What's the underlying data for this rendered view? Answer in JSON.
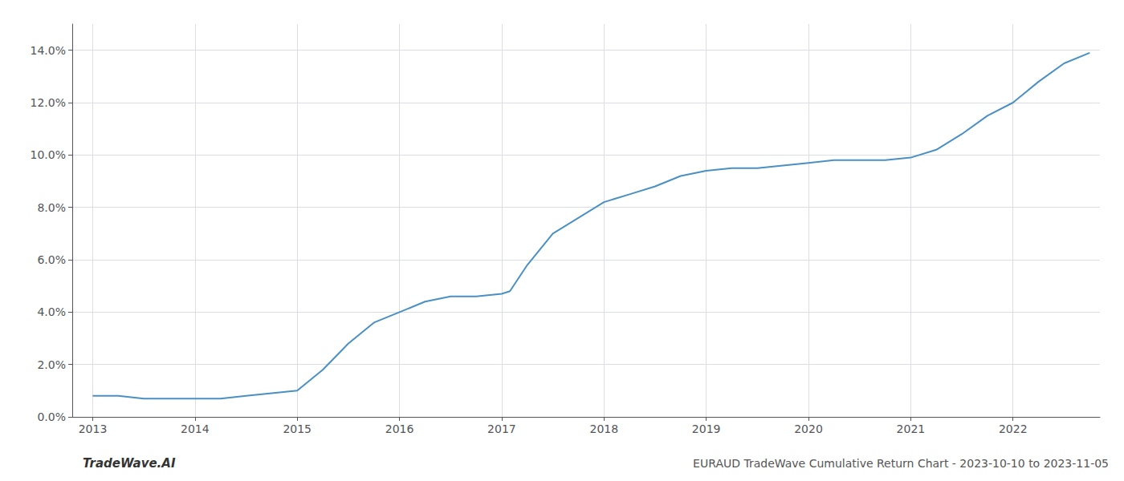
{
  "chart_data": {
    "type": "line",
    "title": "EURAUD TradeWave Cumulative Return Chart - 2023-10-10 to 2023-11-05",
    "annotations": [
      "TradeWave.AI"
    ],
    "x": [
      2013.0,
      2013.25,
      2013.5,
      2013.75,
      2014.0,
      2014.25,
      2014.5,
      2014.75,
      2015.0,
      2015.25,
      2015.5,
      2015.75,
      2016.0,
      2016.25,
      2016.5,
      2016.75,
      2017.0,
      2017.08,
      2017.25,
      2017.5,
      2018.0,
      2018.25,
      2018.5,
      2018.75,
      2019.0,
      2019.25,
      2019.5,
      2019.75,
      2020.0,
      2020.25,
      2020.5,
      2020.75,
      2021.0,
      2021.25,
      2021.5,
      2021.75,
      2022.0,
      2022.25,
      2022.5,
      2022.75
    ],
    "values": [
      0.008,
      0.008,
      0.007,
      0.007,
      0.007,
      0.007,
      0.008,
      0.009,
      0.01,
      0.018,
      0.028,
      0.036,
      0.04,
      0.044,
      0.046,
      0.046,
      0.047,
      0.048,
      0.058,
      0.07,
      0.082,
      0.085,
      0.088,
      0.092,
      0.094,
      0.095,
      0.095,
      0.096,
      0.097,
      0.098,
      0.098,
      0.098,
      0.099,
      0.102,
      0.108,
      0.115,
      0.12,
      0.128,
      0.135,
      0.139
    ],
    "color": "#4a90c4",
    "xlim": [
      2012.8,
      2022.85
    ],
    "xticks": [
      2013,
      2014,
      2015,
      2016,
      2017,
      2018,
      2019,
      2020,
      2021,
      2022
    ],
    "ylim": [
      0.0,
      0.15
    ],
    "yticks": [
      {
        "value": 0.0,
        "label": "0.0%"
      },
      {
        "value": 0.02,
        "label": "2.0%"
      },
      {
        "value": 0.04,
        "label": "4.0%"
      },
      {
        "value": 0.06,
        "label": "6.0%"
      },
      {
        "value": 0.08,
        "label": "8.0%"
      },
      {
        "value": 0.1,
        "label": "10.0%"
      },
      {
        "value": 0.12,
        "label": "12.0%"
      },
      {
        "value": 0.14,
        "label": "14.0%"
      }
    ],
    "grid": true
  }
}
